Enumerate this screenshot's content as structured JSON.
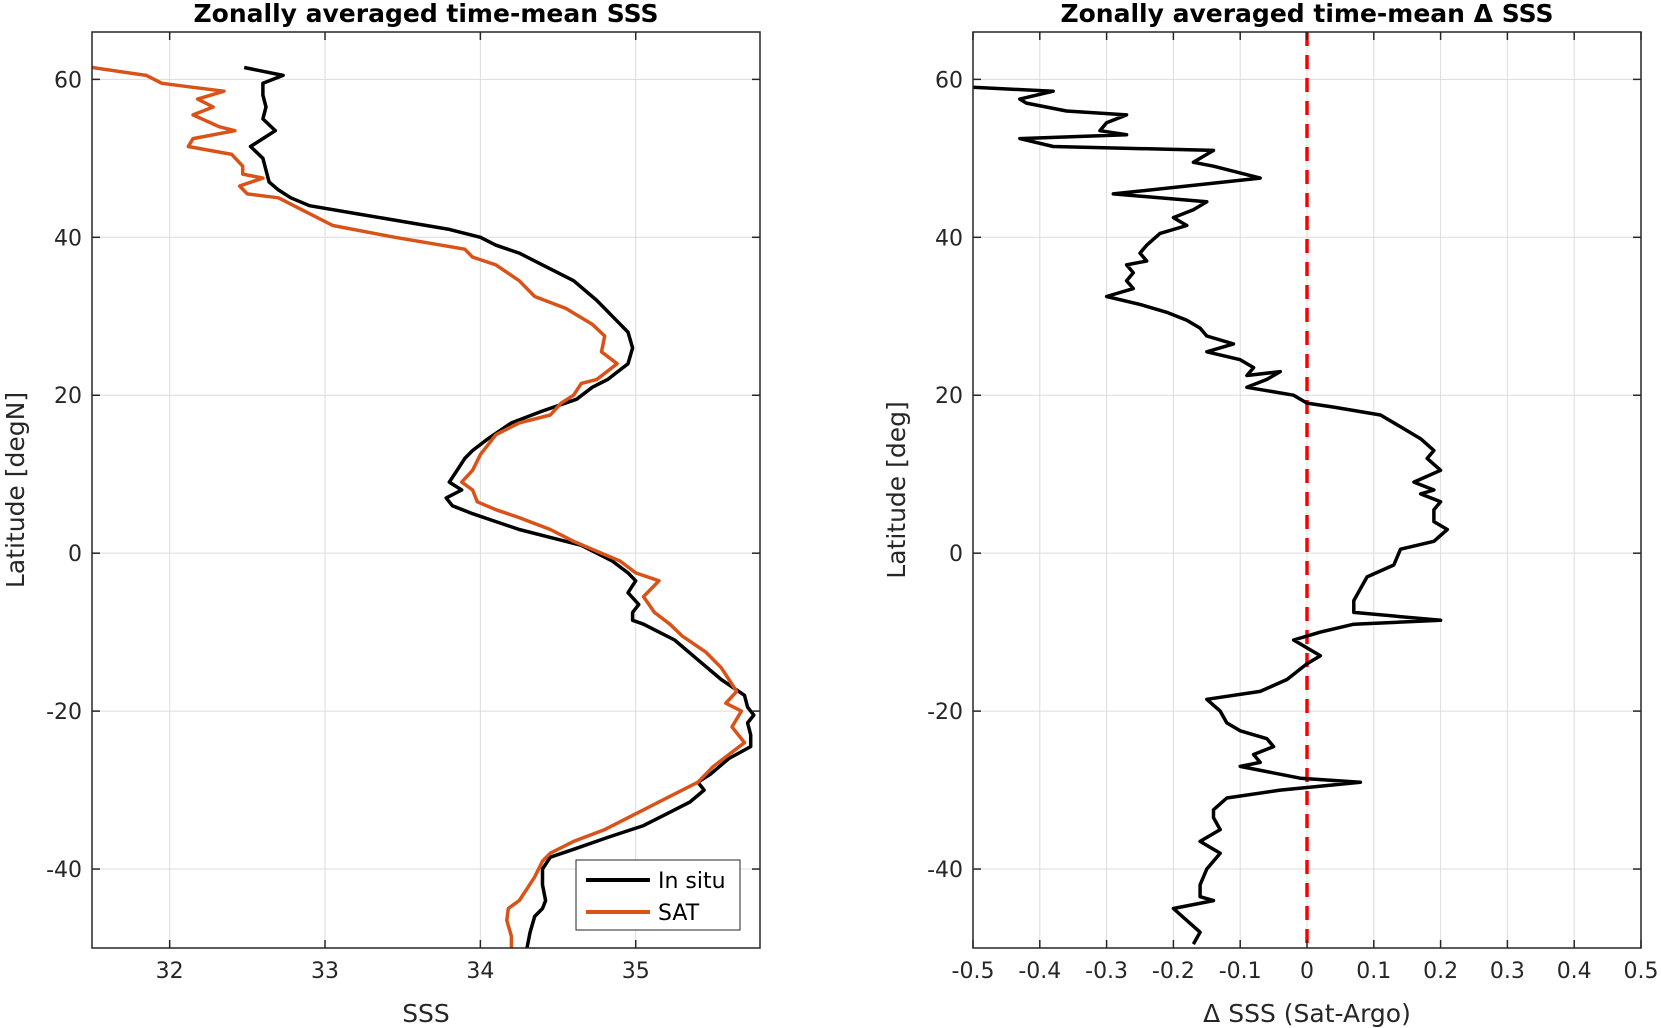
{
  "chart_data": [
    {
      "type": "line",
      "title": "Zonally averaged time-mean SSS",
      "xlabel": "SSS",
      "ylabel": "Latitude [degN]",
      "xlim": [
        31.5,
        35.8
      ],
      "ylim": [
        -50,
        66
      ],
      "xticks": [
        32,
        33,
        34,
        35
      ],
      "yticks": [
        -40,
        -20,
        0,
        20,
        40,
        60
      ],
      "grid": true,
      "legend_position": "bottom-right",
      "series": [
        {
          "name": "In situ",
          "color": "#000000",
          "points": [
            [
              32.48,
              61.5
            ],
            [
              32.73,
              60.5
            ],
            [
              32.6,
              59.5
            ],
            [
              32.6,
              58.0
            ],
            [
              32.62,
              56.5
            ],
            [
              32.6,
              55.0
            ],
            [
              32.68,
              53.5
            ],
            [
              32.6,
              52.5
            ],
            [
              32.52,
              51.5
            ],
            [
              32.6,
              50.0
            ],
            [
              32.62,
              48.5
            ],
            [
              32.64,
              47.0
            ],
            [
              32.7,
              46.0
            ],
            [
              32.78,
              45.0
            ],
            [
              32.9,
              44.0
            ],
            [
              33.2,
              43.0
            ],
            [
              33.5,
              42.0
            ],
            [
              33.8,
              41.0
            ],
            [
              34.0,
              40.0
            ],
            [
              34.1,
              39.0
            ],
            [
              34.25,
              38.0
            ],
            [
              34.4,
              36.5
            ],
            [
              34.6,
              34.5
            ],
            [
              34.75,
              32.0
            ],
            [
              34.85,
              30.0
            ],
            [
              34.95,
              28.0
            ],
            [
              34.98,
              26.0
            ],
            [
              34.95,
              24.0
            ],
            [
              34.82,
              22.0
            ],
            [
              34.72,
              21.0
            ],
            [
              34.62,
              19.5
            ],
            [
              34.4,
              18.0
            ],
            [
              34.2,
              16.5
            ],
            [
              34.05,
              14.5
            ],
            [
              33.95,
              13.0
            ],
            [
              33.9,
              12.0
            ],
            [
              33.85,
              10.5
            ],
            [
              33.8,
              9.0
            ],
            [
              33.88,
              8.0
            ],
            [
              33.78,
              7.0
            ],
            [
              33.82,
              6.0
            ],
            [
              33.95,
              5.0
            ],
            [
              34.1,
              4.0
            ],
            [
              34.25,
              3.0
            ],
            [
              34.45,
              2.0
            ],
            [
              34.65,
              1.0
            ],
            [
              34.75,
              0.0
            ],
            [
              34.85,
              -1.0
            ],
            [
              34.95,
              -2.5
            ],
            [
              35.0,
              -3.5
            ],
            [
              34.95,
              -5.0
            ],
            [
              35.02,
              -6.5
            ],
            [
              34.98,
              -7.5
            ],
            [
              34.98,
              -8.5
            ],
            [
              35.05,
              -9.0
            ],
            [
              35.25,
              -11.0
            ],
            [
              35.4,
              -13.5
            ],
            [
              35.55,
              -16.0
            ],
            [
              35.7,
              -18.0
            ],
            [
              35.72,
              -19.5
            ],
            [
              35.76,
              -20.5
            ],
            [
              35.72,
              -21.5
            ],
            [
              35.74,
              -23.0
            ],
            [
              35.74,
              -24.5
            ],
            [
              35.6,
              -26.0
            ],
            [
              35.48,
              -28.0
            ],
            [
              35.4,
              -29.0
            ],
            [
              35.44,
              -30.0
            ],
            [
              35.35,
              -31.5
            ],
            [
              35.2,
              -33.0
            ],
            [
              35.05,
              -34.5
            ],
            [
              34.82,
              -36.0
            ],
            [
              34.6,
              -37.5
            ],
            [
              34.45,
              -38.5
            ],
            [
              34.4,
              -40.0
            ],
            [
              34.4,
              -42.0
            ],
            [
              34.42,
              -44.0
            ],
            [
              34.4,
              -45.0
            ],
            [
              34.35,
              -46.0
            ],
            [
              34.32,
              -48.0
            ],
            [
              34.3,
              -50.0
            ]
          ]
        },
        {
          "name": "SAT",
          "color": "#D95319",
          "points": [
            [
              31.5,
              61.5
            ],
            [
              31.85,
              60.5
            ],
            [
              31.95,
              59.5
            ],
            [
              32.15,
              59.0
            ],
            [
              32.35,
              58.5
            ],
            [
              32.18,
              57.5
            ],
            [
              32.28,
              56.5
            ],
            [
              32.15,
              55.5
            ],
            [
              32.32,
              54.0
            ],
            [
              32.42,
              53.5
            ],
            [
              32.15,
              52.5
            ],
            [
              32.12,
              51.5
            ],
            [
              32.4,
              50.5
            ],
            [
              32.47,
              49.0
            ],
            [
              32.47,
              48.0
            ],
            [
              32.6,
              47.5
            ],
            [
              32.45,
              46.5
            ],
            [
              32.5,
              45.5
            ],
            [
              32.7,
              45.0
            ],
            [
              32.85,
              43.5
            ],
            [
              33.05,
              41.5
            ],
            [
              33.45,
              40.0
            ],
            [
              33.75,
              39.0
            ],
            [
              33.9,
              38.5
            ],
            [
              33.95,
              37.5
            ],
            [
              34.1,
              36.5
            ],
            [
              34.25,
              34.5
            ],
            [
              34.35,
              32.5
            ],
            [
              34.55,
              31.0
            ],
            [
              34.72,
              29.0
            ],
            [
              34.8,
              27.5
            ],
            [
              34.78,
              25.5
            ],
            [
              34.88,
              24.0
            ],
            [
              34.75,
              22.0
            ],
            [
              34.65,
              21.5
            ],
            [
              34.6,
              20.0
            ],
            [
              34.52,
              19.0
            ],
            [
              34.45,
              17.5
            ],
            [
              34.25,
              16.5
            ],
            [
              34.1,
              15.0
            ],
            [
              34.0,
              12.5
            ],
            [
              33.95,
              10.5
            ],
            [
              33.88,
              9.0
            ],
            [
              33.95,
              8.0
            ],
            [
              33.98,
              6.5
            ],
            [
              34.1,
              5.5
            ],
            [
              34.25,
              4.5
            ],
            [
              34.45,
              3.0
            ],
            [
              34.6,
              1.5
            ],
            [
              34.78,
              0.0
            ],
            [
              34.9,
              -1.0
            ],
            [
              35.0,
              -2.5
            ],
            [
              35.15,
              -3.5
            ],
            [
              35.05,
              -5.5
            ],
            [
              35.12,
              -7.5
            ],
            [
              35.22,
              -9.0
            ],
            [
              35.3,
              -10.5
            ],
            [
              35.45,
              -12.5
            ],
            [
              35.55,
              -14.5
            ],
            [
              35.6,
              -16.0
            ],
            [
              35.65,
              -17.5
            ],
            [
              35.58,
              -19.0
            ],
            [
              35.68,
              -20.0
            ],
            [
              35.62,
              -22.0
            ],
            [
              35.7,
              -24.0
            ],
            [
              35.6,
              -25.5
            ],
            [
              35.5,
              -27.0
            ],
            [
              35.4,
              -29.0
            ],
            [
              35.15,
              -31.5
            ],
            [
              35.0,
              -33.0
            ],
            [
              34.8,
              -35.0
            ],
            [
              34.6,
              -36.5
            ],
            [
              34.45,
              -38.0
            ],
            [
              34.4,
              -39.0
            ],
            [
              34.35,
              -41.0
            ],
            [
              34.3,
              -42.5
            ],
            [
              34.25,
              -44.0
            ],
            [
              34.18,
              -45.0
            ],
            [
              34.17,
              -46.5
            ],
            [
              34.2,
              -48.5
            ],
            [
              34.2,
              -50.0
            ]
          ]
        }
      ]
    },
    {
      "type": "line",
      "title": "Zonally averaged time-mean Δ SSS",
      "xlabel": "Δ SSS (Sat-Argo)",
      "ylabel": "Latitude [deg]",
      "xlim": [
        -0.5,
        0.5
      ],
      "ylim": [
        -50,
        66
      ],
      "xticks": [
        -0.5,
        -0.4,
        -0.3,
        -0.2,
        -0.1,
        0,
        0.1,
        0.2,
        0.3,
        0.4,
        0.5
      ],
      "yticks": [
        -40,
        -20,
        0,
        20,
        40,
        60
      ],
      "grid": true,
      "reference_line": {
        "x": 0,
        "color": "#FF0000",
        "style": "dashed"
      },
      "series": [
        {
          "color": "#000000",
          "points": [
            [
              -0.5,
              59.0
            ],
            [
              -0.38,
              58.5
            ],
            [
              -0.43,
              57.5
            ],
            [
              -0.42,
              57.0
            ],
            [
              -0.36,
              56.0
            ],
            [
              -0.27,
              55.5
            ],
            [
              -0.3,
              54.5
            ],
            [
              -0.31,
              53.5
            ],
            [
              -0.27,
              53.0
            ],
            [
              -0.43,
              52.5
            ],
            [
              -0.38,
              51.5
            ],
            [
              -0.14,
              51.0
            ],
            [
              -0.17,
              49.5
            ],
            [
              -0.14,
              49.0
            ],
            [
              -0.07,
              47.5
            ],
            [
              -0.29,
              45.5
            ],
            [
              -0.15,
              44.5
            ],
            [
              -0.17,
              43.5
            ],
            [
              -0.2,
              42.5
            ],
            [
              -0.18,
              41.5
            ],
            [
              -0.22,
              40.5
            ],
            [
              -0.24,
              39.0
            ],
            [
              -0.25,
              38.0
            ],
            [
              -0.24,
              37.0
            ],
            [
              -0.27,
              36.5
            ],
            [
              -0.26,
              35.5
            ],
            [
              -0.27,
              34.5
            ],
            [
              -0.26,
              33.5
            ],
            [
              -0.3,
              32.5
            ],
            [
              -0.25,
              31.5
            ],
            [
              -0.21,
              30.5
            ],
            [
              -0.18,
              29.5
            ],
            [
              -0.16,
              28.5
            ],
            [
              -0.15,
              27.5
            ],
            [
              -0.11,
              26.5
            ],
            [
              -0.15,
              25.5
            ],
            [
              -0.1,
              24.5
            ],
            [
              -0.08,
              23.5
            ],
            [
              -0.09,
              22.5
            ],
            [
              -0.04,
              23.0
            ],
            [
              -0.06,
              22.0
            ],
            [
              -0.09,
              21.0
            ],
            [
              -0.02,
              20.0
            ],
            [
              0.0,
              19.0
            ],
            [
              0.04,
              18.5
            ],
            [
              0.11,
              17.5
            ],
            [
              0.14,
              16.0
            ],
            [
              0.17,
              14.5
            ],
            [
              0.19,
              13.0
            ],
            [
              0.18,
              12.0
            ],
            [
              0.2,
              10.5
            ],
            [
              0.16,
              9.0
            ],
            [
              0.19,
              8.0
            ],
            [
              0.17,
              7.5
            ],
            [
              0.2,
              6.5
            ],
            [
              0.19,
              5.5
            ],
            [
              0.19,
              4.0
            ],
            [
              0.21,
              3.0
            ],
            [
              0.19,
              1.5
            ],
            [
              0.14,
              0.5
            ],
            [
              0.13,
              -1.5
            ],
            [
              0.09,
              -3.0
            ],
            [
              0.08,
              -4.5
            ],
            [
              0.07,
              -6.0
            ],
            [
              0.07,
              -7.5
            ],
            [
              0.2,
              -8.5
            ],
            [
              0.07,
              -9.0
            ],
            [
              0.02,
              -10.0
            ],
            [
              0.0,
              -10.5
            ],
            [
              -0.02,
              -11.0
            ],
            [
              0.0,
              -12.0
            ],
            [
              0.02,
              -13.0
            ],
            [
              0.0,
              -14.0
            ],
            [
              -0.03,
              -16.0
            ],
            [
              -0.07,
              -17.5
            ],
            [
              -0.15,
              -18.5
            ],
            [
              -0.13,
              -20.0
            ],
            [
              -0.12,
              -21.5
            ],
            [
              -0.1,
              -22.5
            ],
            [
              -0.06,
              -23.5
            ],
            [
              -0.05,
              -24.5
            ],
            [
              -0.08,
              -25.5
            ],
            [
              -0.07,
              -26.5
            ],
            [
              -0.1,
              -27.0
            ],
            [
              -0.01,
              -28.5
            ],
            [
              0.08,
              -29.0
            ],
            [
              -0.04,
              -30.0
            ],
            [
              -0.12,
              -31.0
            ],
            [
              -0.14,
              -32.5
            ],
            [
              -0.14,
              -33.5
            ],
            [
              -0.13,
              -35.0
            ],
            [
              -0.16,
              -36.5
            ],
            [
              -0.13,
              -38.0
            ],
            [
              -0.15,
              -40.0
            ],
            [
              -0.16,
              -42.0
            ],
            [
              -0.16,
              -43.5
            ],
            [
              -0.14,
              -44.0
            ],
            [
              -0.2,
              -45.0
            ],
            [
              -0.18,
              -46.5
            ],
            [
              -0.16,
              -48.0
            ],
            [
              -0.17,
              -49.5
            ]
          ]
        }
      ]
    }
  ],
  "legend": {
    "items": [
      {
        "label": "In situ",
        "color": "#000000"
      },
      {
        "label": "SAT",
        "color": "#D95319"
      }
    ]
  }
}
